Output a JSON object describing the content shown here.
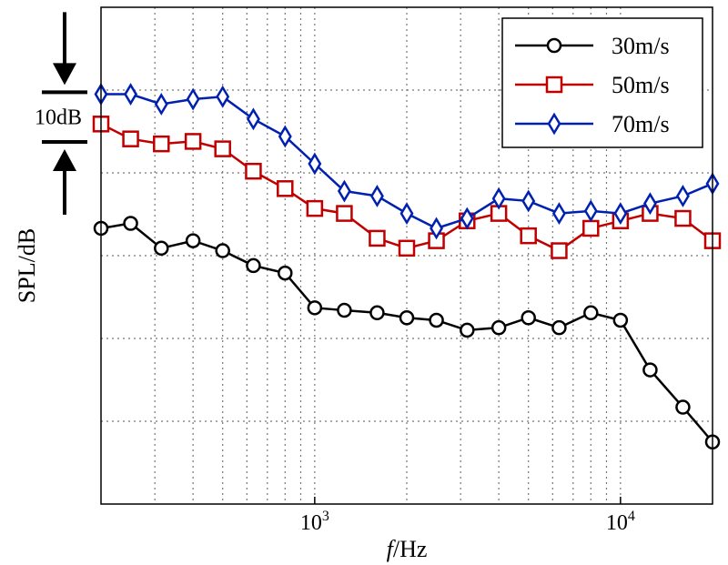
{
  "chart_data": {
    "type": "line",
    "title": "",
    "xlabel": "f/Hz",
    "xlabel_italic_part": "f",
    "xlabel_rest": "/Hz",
    "ylabel": "SPL/dB",
    "x_scale": "log",
    "xlim": [
      200,
      20000
    ],
    "ylim": [
      0,
      100
    ],
    "grid": true,
    "legend_position": "top-right",
    "x_ticks": [
      {
        "value": 1000,
        "base": "10",
        "exp": "3"
      },
      {
        "value": 10000,
        "base": "10",
        "exp": "4"
      }
    ],
    "scale_annotation": {
      "label": "10dB",
      "span_db": 10,
      "top_value": 82.9,
      "bottom_value": 72.9
    },
    "x": [
      200,
      250,
      315,
      400,
      500,
      630,
      800,
      1000,
      1250,
      1600,
      2000,
      2500,
      3150,
      4000,
      5000,
      6300,
      8000,
      10000,
      12500,
      16000,
      20000
    ],
    "series": [
      {
        "name": "30m/s",
        "marker": "circle",
        "color": "#000000",
        "values": [
          55.5,
          56.5,
          51.5,
          53.0,
          51.0,
          48.0,
          46.5,
          39.5,
          39.0,
          38.5,
          37.5,
          37.0,
          35.0,
          35.5,
          37.5,
          35.5,
          38.5,
          37.0,
          27.0,
          19.5,
          12.5
        ]
      },
      {
        "name": "50m/s",
        "marker": "square",
        "color": "#c00000",
        "values": [
          76.5,
          73.5,
          72.5,
          73.0,
          71.5,
          67.0,
          63.5,
          59.5,
          58.5,
          53.5,
          51.5,
          53.0,
          57.0,
          58.5,
          54.0,
          51.0,
          55.5,
          57.0,
          58.5,
          57.5,
          53.0
        ]
      },
      {
        "name": "70m/s",
        "marker": "diamond",
        "color": "#0020b0",
        "values": [
          82.5,
          82.5,
          80.5,
          81.5,
          82.0,
          77.5,
          74.0,
          68.5,
          63.0,
          62.0,
          58.5,
          55.5,
          57.5,
          61.5,
          61.0,
          58.5,
          59.0,
          58.5,
          60.5,
          62.0,
          64.5
        ]
      }
    ]
  }
}
